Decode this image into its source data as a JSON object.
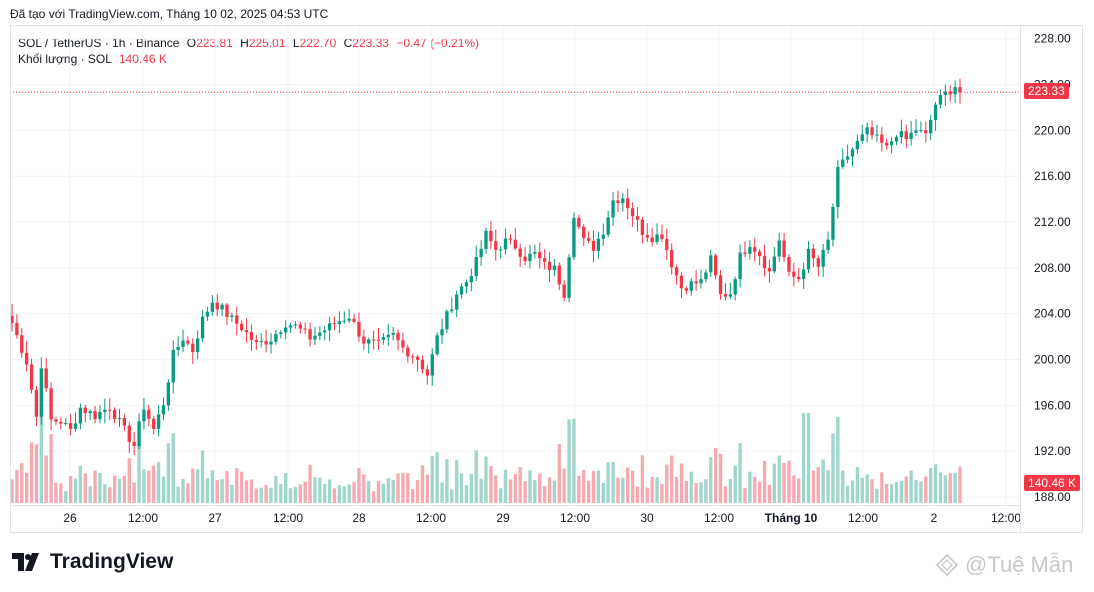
{
  "header": {
    "published": "Đã tạo với TradingView.com, Tháng 10 02, 2025 04:53 UTC"
  },
  "legend": {
    "symbol": "SOL / TetherUS · 1h · Binance",
    "o_label": "O",
    "o": "223.81",
    "h_label": "H",
    "h": "225.01",
    "l_label": "L",
    "l": "222.70",
    "c_label": "C",
    "c": "223.33",
    "change": "−0.47 (−0.21%)",
    "volume_label": "Khối lượng · SOL",
    "volume": "140.46 K"
  },
  "price_tag": "223.33",
  "volume_tag": "140.46 K",
  "colors": {
    "up": "#089981",
    "down": "#f23645",
    "vol_up": "#9fd6cb",
    "vol_down": "#f7a9b0"
  },
  "footer": {
    "brand": "TradingView",
    "watermark": "@Tuệ Mẫn"
  },
  "chart_data": {
    "type": "candlestick",
    "y_ticks": [
      "228.00",
      "224.00",
      "220.00",
      "216.00",
      "212.00",
      "208.00",
      "204.00",
      "200.00",
      "196.00",
      "192.00",
      "188.00"
    ],
    "y_range": [
      187.3,
      229.2
    ],
    "x_ticks": [
      "26",
      "12:00",
      "27",
      "12:00",
      "28",
      "12:00",
      "29",
      "12:00",
      "30",
      "12:00",
      "Tháng 10",
      "12:00",
      "2",
      "12:00"
    ],
    "last_price": 223.33,
    "anchors": [
      [
        0,
        203.2
      ],
      [
        3,
        199.8
      ],
      [
        5,
        195.0
      ],
      [
        6,
        199.6
      ],
      [
        8,
        194.7
      ],
      [
        10,
        194.6
      ],
      [
        12,
        193.8
      ],
      [
        14,
        195.8
      ],
      [
        17,
        195.1
      ],
      [
        20,
        195.9
      ],
      [
        23,
        193.8
      ],
      [
        25,
        192.5
      ],
      [
        27,
        195.9
      ],
      [
        29,
        193.9
      ],
      [
        31,
        196.2
      ],
      [
        33,
        200.4
      ],
      [
        35,
        201.9
      ],
      [
        37,
        200.8
      ],
      [
        39,
        203.5
      ],
      [
        41,
        205.1
      ],
      [
        43,
        204.4
      ],
      [
        45,
        203.5
      ],
      [
        47,
        202.8
      ],
      [
        50,
        201.3
      ],
      [
        53,
        201.8
      ],
      [
        56,
        203.2
      ],
      [
        58,
        202.9
      ],
      [
        61,
        201.9
      ],
      [
        64,
        202.6
      ],
      [
        67,
        203.4
      ],
      [
        69,
        203.8
      ],
      [
        72,
        201.6
      ],
      [
        75,
        201.3
      ],
      [
        78,
        202.1
      ],
      [
        80,
        201.0
      ],
      [
        83,
        200.1
      ],
      [
        85,
        198.7
      ],
      [
        87,
        201.9
      ],
      [
        89,
        203.8
      ],
      [
        91,
        205.8
      ],
      [
        93,
        206.8
      ],
      [
        95,
        208.5
      ],
      [
        97,
        210.9
      ],
      [
        99,
        209.6
      ],
      [
        101,
        210.3
      ],
      [
        103,
        209.9
      ],
      [
        105,
        208.9
      ],
      [
        107,
        209.2
      ],
      [
        109,
        208.2
      ],
      [
        111,
        207.9
      ],
      [
        113,
        205.8
      ],
      [
        115,
        212.8
      ],
      [
        117,
        210.3
      ],
      [
        119,
        209.8
      ],
      [
        121,
        211.3
      ],
      [
        123,
        213.9
      ],
      [
        125,
        214.2
      ],
      [
        127,
        212.7
      ],
      [
        129,
        211.2
      ],
      [
        131,
        210.7
      ],
      [
        133,
        210.9
      ],
      [
        135,
        208.4
      ],
      [
        137,
        206.3
      ],
      [
        139,
        206.6
      ],
      [
        141,
        206.8
      ],
      [
        143,
        208.7
      ],
      [
        145,
        205.6
      ],
      [
        147,
        205.8
      ],
      [
        149,
        209.0
      ],
      [
        151,
        210.2
      ],
      [
        153,
        209.2
      ],
      [
        155,
        207.6
      ],
      [
        157,
        210.5
      ],
      [
        159,
        207.3
      ],
      [
        161,
        207.1
      ],
      [
        163,
        209.3
      ],
      [
        165,
        208.1
      ],
      [
        167,
        210.3
      ],
      [
        169,
        216.4
      ],
      [
        171,
        217.8
      ],
      [
        173,
        218.9
      ],
      [
        175,
        219.9
      ],
      [
        177,
        219.2
      ],
      [
        179,
        218.4
      ],
      [
        181,
        219.8
      ],
      [
        183,
        219.2
      ],
      [
        185,
        220.1
      ],
      [
        187,
        219.5
      ],
      [
        189,
        222.3
      ],
      [
        191,
        223.2
      ],
      [
        193,
        223.9
      ],
      [
        194,
        223.33
      ]
    ],
    "volume_max_k": 260
  }
}
